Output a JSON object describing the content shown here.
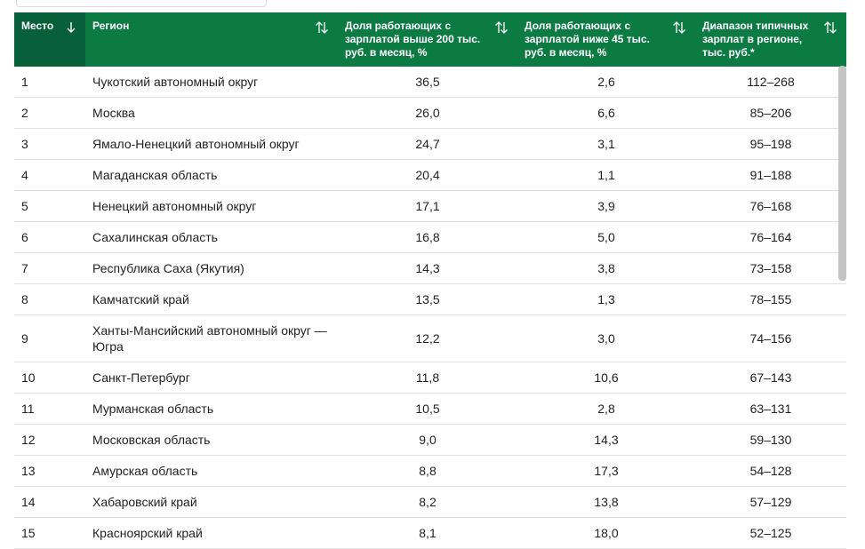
{
  "table": {
    "headers": [
      "Место",
      "Регион",
      "Доля работающих с зарплатой выше 200 тыс. руб. в месяц, %",
      "Доля работающих с зарплатой ниже 45 тыс. руб. в месяц, %",
      "Диапазон типичных зарплат в регионе, тыс. руб.*"
    ],
    "rows": [
      [
        "1",
        "Чукотский автономный округ",
        "36,5",
        "2,6",
        "112–268"
      ],
      [
        "2",
        "Москва",
        "26,0",
        "6,6",
        "85–206"
      ],
      [
        "3",
        "Ямало-Ненецкий автономный округ",
        "24,7",
        "3,1",
        "95–198"
      ],
      [
        "4",
        "Магаданская область",
        "20,4",
        "1,1",
        "91–188"
      ],
      [
        "5",
        "Ненецкий автономный округ",
        "17,1",
        "3,9",
        "76–168"
      ],
      [
        "6",
        "Сахалинская область",
        "16,8",
        "5,0",
        "76–164"
      ],
      [
        "7",
        "Республика Саха (Якутия)",
        "14,3",
        "3,8",
        "73–158"
      ],
      [
        "8",
        "Камчатский край",
        "13,5",
        "1,3",
        "78–155"
      ],
      [
        "9",
        "Ханты-Мансийский автономный округ — Югра",
        "12,2",
        "3,0",
        "74–156"
      ],
      [
        "10",
        "Санкт-Петербург",
        "11,8",
        "10,6",
        "67–143"
      ],
      [
        "11",
        "Мурманская область",
        "10,5",
        "2,8",
        "63–131"
      ],
      [
        "12",
        "Московская область",
        "9,0",
        "14,3",
        "59–130"
      ],
      [
        "13",
        "Амурская область",
        "8,8",
        "17,3",
        "54–128"
      ],
      [
        "14",
        "Хабаровский край",
        "8,2",
        "13,8",
        "57–129"
      ],
      [
        "15",
        "Красноярский край",
        "8,1",
        "18,0",
        "52–125"
      ]
    ]
  }
}
